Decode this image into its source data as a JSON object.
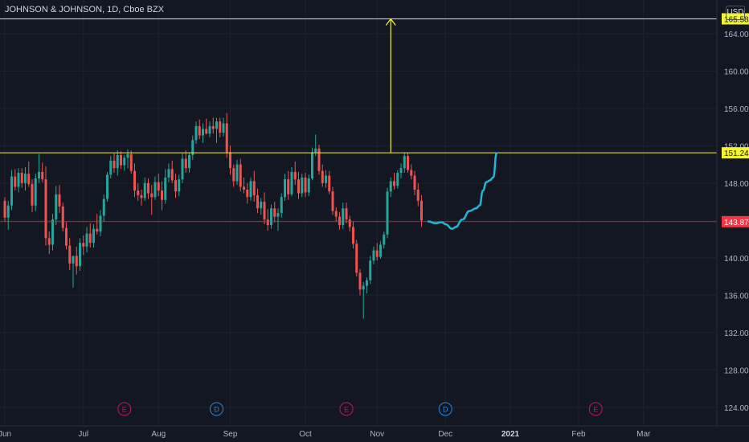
{
  "header": {
    "title": "JOHNSON & JOHNSON, 1D, Cboe BZX",
    "currency_label": "USD"
  },
  "colors": {
    "background": "#131722",
    "grid": "#1e222d",
    "up": "#26a69a",
    "down": "#ef5350",
    "level_line": "#f2f530",
    "level_label_bg": "#f2f530",
    "current_price": "#f23645",
    "projection": "#21b5d6",
    "event_earnings": "#c2185b",
    "event_dividend": "#1e88e5",
    "axis_text": "#b2b5be"
  },
  "chart_data": {
    "type": "candlestick",
    "title": "JOHNSON & JOHNSON, 1D, Cboe BZX",
    "ylim": [
      122.0,
      167.6
    ],
    "y_ticks": [
      "124.00",
      "128.00",
      "132.00",
      "136.00",
      "140.00",
      "144.00",
      "148.00",
      "152.00",
      "156.00",
      "160.00",
      "164.00",
      "168.00"
    ],
    "x_ticks": [
      "Jun",
      "Jul",
      "Aug",
      "Sep",
      "Oct",
      "Nov",
      "Dec",
      "2021",
      "Feb",
      "Mar"
    ],
    "x_tick_bars": [
      0,
      23,
      45,
      66,
      88,
      109,
      129,
      148,
      168,
      187
    ],
    "x_tick_bold": [
      false,
      false,
      false,
      false,
      false,
      false,
      false,
      true,
      false,
      false
    ],
    "candles": [
      [
        146.1,
        146.5,
        143.9,
        144.3
      ],
      [
        144.3,
        146.1,
        143.0,
        145.6
      ],
      [
        145.6,
        149.4,
        145.1,
        148.7
      ],
      [
        148.7,
        149.5,
        147.2,
        147.6
      ],
      [
        147.6,
        149.6,
        147.0,
        149.1
      ],
      [
        149.1,
        149.6,
        147.5,
        148.0
      ],
      [
        148.0,
        149.7,
        147.2,
        149.0
      ],
      [
        149.0,
        150.3,
        147.6,
        147.9
      ],
      [
        147.9,
        148.4,
        144.9,
        145.6
      ],
      [
        145.6,
        149.0,
        145.0,
        148.5
      ],
      [
        148.5,
        151.1,
        148.0,
        149.2
      ],
      [
        149.2,
        150.2,
        148.1,
        148.4
      ],
      [
        148.4,
        149.8,
        141.3,
        142.1
      ],
      [
        142.1,
        142.8,
        140.4,
        141.4
      ],
      [
        141.4,
        144.7,
        140.8,
        144.1
      ],
      [
        144.1,
        147.7,
        143.5,
        146.8
      ],
      [
        146.8,
        147.8,
        144.8,
        145.5
      ],
      [
        145.5,
        145.9,
        142.8,
        143.2
      ],
      [
        143.2,
        143.8,
        140.9,
        141.3
      ],
      [
        141.3,
        142.1,
        138.7,
        139.4
      ],
      [
        139.4,
        140.2,
        136.8,
        140.2
      ],
      [
        140.2,
        141.2,
        138.2,
        139.1
      ],
      [
        139.1,
        142.1,
        138.6,
        141.6
      ],
      [
        141.6,
        142.4,
        140.3,
        141.2
      ],
      [
        141.2,
        143.3,
        140.6,
        142.6
      ],
      [
        142.6,
        143.7,
        141.1,
        141.6
      ],
      [
        141.6,
        143.6,
        141.1,
        143.1
      ],
      [
        143.1,
        144.7,
        142.5,
        142.8
      ],
      [
        142.8,
        145.1,
        142.3,
        144.5
      ],
      [
        144.5,
        146.8,
        143.9,
        146.3
      ],
      [
        146.3,
        149.2,
        146.0,
        148.9
      ],
      [
        148.9,
        150.9,
        148.5,
        150.4
      ],
      [
        150.4,
        151.2,
        149.1,
        149.6
      ],
      [
        149.6,
        151.5,
        148.8,
        151.0
      ],
      [
        151.0,
        151.4,
        149.5,
        149.9
      ],
      [
        149.9,
        151.0,
        149.3,
        150.7
      ],
      [
        150.7,
        151.6,
        149.6,
        151.1
      ],
      [
        151.1,
        151.5,
        149.0,
        149.3
      ],
      [
        149.3,
        150.1,
        146.5,
        147.2
      ],
      [
        147.2,
        148.0,
        146.1,
        146.7
      ],
      [
        146.7,
        147.3,
        145.6,
        146.4
      ],
      [
        146.4,
        148.6,
        146.1,
        148.0
      ],
      [
        148.0,
        148.5,
        146.3,
        146.9
      ],
      [
        146.9,
        147.8,
        144.6,
        146.5
      ],
      [
        146.5,
        148.7,
        146.2,
        148.1
      ],
      [
        148.1,
        149.0,
        146.6,
        147.2
      ],
      [
        147.2,
        148.2,
        145.1,
        146.2
      ],
      [
        146.2,
        149.5,
        145.8,
        148.6
      ],
      [
        148.6,
        150.1,
        148.1,
        149.5
      ],
      [
        149.5,
        150.4,
        148.0,
        148.3
      ],
      [
        148.3,
        149.0,
        146.4,
        147.1
      ],
      [
        147.1,
        148.9,
        146.6,
        148.4
      ],
      [
        148.4,
        151.2,
        148.0,
        150.6
      ],
      [
        150.6,
        151.5,
        149.1,
        149.6
      ],
      [
        149.6,
        151.3,
        149.1,
        151.0
      ],
      [
        151.0,
        153.1,
        150.5,
        152.6
      ],
      [
        152.6,
        154.6,
        152.2,
        154.1
      ],
      [
        154.1,
        154.8,
        152.7,
        153.1
      ],
      [
        153.1,
        154.4,
        152.3,
        153.8
      ],
      [
        153.8,
        154.9,
        153.2,
        153.3
      ],
      [
        153.3,
        154.6,
        152.9,
        154.1
      ],
      [
        154.1,
        155.0,
        153.3,
        153.8
      ],
      [
        153.8,
        155.0,
        152.3,
        154.6
      ],
      [
        154.6,
        155.0,
        152.9,
        153.4
      ],
      [
        153.4,
        155.0,
        153.0,
        154.4
      ],
      [
        154.4,
        155.5,
        150.7,
        151.3
      ],
      [
        151.3,
        152.0,
        148.9,
        149.6
      ],
      [
        149.6,
        150.0,
        147.6,
        148.2
      ],
      [
        148.2,
        150.5,
        147.8,
        150.0
      ],
      [
        150.0,
        150.6,
        147.1,
        147.6
      ],
      [
        147.6,
        148.6,
        146.9,
        147.3
      ],
      [
        147.3,
        148.0,
        145.8,
        146.5
      ],
      [
        146.5,
        148.6,
        146.1,
        148.2
      ],
      [
        148.2,
        149.3,
        146.0,
        146.7
      ],
      [
        146.7,
        147.4,
        144.8,
        145.3
      ],
      [
        145.3,
        146.4,
        144.6,
        146.0
      ],
      [
        146.0,
        147.0,
        143.6,
        144.1
      ],
      [
        144.1,
        145.2,
        142.9,
        143.5
      ],
      [
        143.5,
        145.7,
        143.1,
        145.3
      ],
      [
        145.3,
        146.0,
        143.8,
        144.4
      ],
      [
        144.4,
        145.3,
        142.9,
        144.8
      ],
      [
        144.8,
        146.9,
        144.3,
        146.5
      ],
      [
        146.5,
        149.0,
        146.1,
        148.4
      ],
      [
        148.4,
        149.3,
        146.2,
        146.8
      ],
      [
        146.8,
        149.7,
        146.6,
        149.2
      ],
      [
        149.2,
        150.3,
        147.8,
        148.4
      ],
      [
        148.4,
        149.2,
        146.3,
        146.9
      ],
      [
        146.9,
        149.0,
        146.5,
        148.6
      ],
      [
        148.6,
        149.1,
        146.5,
        147.0
      ],
      [
        147.0,
        148.9,
        146.6,
        148.5
      ],
      [
        148.5,
        151.8,
        148.3,
        151.3
      ],
      [
        151.3,
        153.2,
        150.9,
        151.7
      ],
      [
        151.7,
        152.1,
        148.9,
        149.3
      ],
      [
        149.3,
        150.0,
        147.6,
        148.0
      ],
      [
        148.0,
        149.4,
        147.5,
        148.8
      ],
      [
        148.8,
        149.3,
        146.8,
        147.1
      ],
      [
        147.1,
        147.6,
        144.6,
        145.0
      ],
      [
        145.0,
        145.4,
        143.9,
        144.4
      ],
      [
        144.4,
        144.9,
        143.0,
        143.5
      ],
      [
        143.5,
        145.9,
        143.1,
        145.3
      ],
      [
        145.3,
        145.9,
        143.7,
        144.1
      ],
      [
        144.1,
        144.5,
        142.8,
        143.3
      ],
      [
        143.3,
        143.9,
        141.0,
        141.5
      ],
      [
        141.5,
        141.9,
        138.0,
        138.4
      ],
      [
        138.4,
        138.8,
        136.0,
        136.6
      ],
      [
        136.6,
        137.4,
        133.5,
        137.0
      ],
      [
        137.0,
        137.9,
        136.2,
        137.6
      ],
      [
        137.6,
        140.2,
        137.2,
        139.7
      ],
      [
        139.7,
        141.2,
        139.3,
        140.8
      ],
      [
        140.8,
        141.6,
        139.7,
        140.1
      ],
      [
        140.1,
        141.8,
        139.9,
        141.4
      ],
      [
        141.4,
        142.8,
        141.0,
        142.5
      ],
      [
        142.5,
        147.5,
        142.1,
        147.1
      ],
      [
        147.1,
        148.6,
        146.5,
        148.2
      ],
      [
        148.2,
        149.1,
        147.3,
        147.7
      ],
      [
        147.7,
        149.4,
        147.4,
        149.1
      ],
      [
        149.1,
        150.1,
        148.5,
        149.6
      ],
      [
        149.6,
        151.3,
        149.1,
        150.9
      ],
      [
        150.9,
        151.3,
        149.1,
        149.4
      ],
      [
        149.4,
        150.0,
        148.4,
        148.8
      ],
      [
        148.8,
        149.3,
        146.7,
        147.3
      ],
      [
        147.3,
        148.0,
        145.5,
        146.1
      ],
      [
        146.1,
        146.7,
        143.3,
        144.0
      ]
    ],
    "levels": [
      {
        "label": "165.58",
        "value": 165.58
      },
      {
        "label": "151.24",
        "value": 151.24
      }
    ],
    "current_price": {
      "label": "143.87",
      "value": 143.87
    },
    "projection_path": [
      [
        124,
        143.9
      ],
      [
        126,
        143.7
      ],
      [
        128,
        143.8
      ],
      [
        129,
        143.6
      ],
      [
        131,
        143.1
      ],
      [
        132,
        143.3
      ],
      [
        134,
        144.1
      ],
      [
        136,
        145.0
      ],
      [
        138,
        145.3
      ],
      [
        139,
        145.6
      ],
      [
        140,
        147.2
      ],
      [
        141,
        148.1
      ],
      [
        142,
        148.3
      ],
      [
        143,
        148.6
      ],
      [
        144,
        151.2
      ]
    ],
    "target_arrow": {
      "bar": 113,
      "from": 151.24,
      "to": 165.58
    },
    "events": [
      {
        "letter": "E",
        "kind": "earnings",
        "bar": 35
      },
      {
        "letter": "D",
        "kind": "dividend",
        "bar": 62
      },
      {
        "letter": "E",
        "kind": "earnings",
        "bar": 100
      },
      {
        "letter": "D",
        "kind": "dividend",
        "bar": 129
      },
      {
        "letter": "E",
        "kind": "earnings",
        "bar": 173
      }
    ]
  }
}
